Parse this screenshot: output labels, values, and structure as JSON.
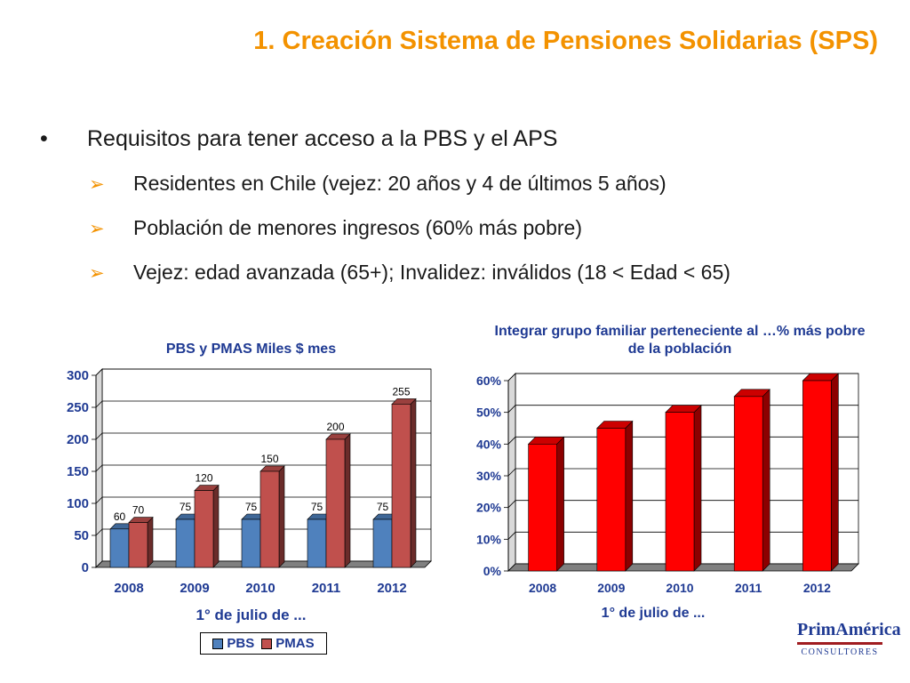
{
  "slide": {
    "title": "1. Creación Sistema de Pensiones Solidarias (SPS)",
    "bullet": "Requisitos para tener acceso a la PBS y el APS",
    "bullet_marker": "•",
    "sub_marker": "➢",
    "sub_bullets": [
      "Residentes en Chile (vejez: 20 años y 4 de últimos 5 años)",
      "Población de menores ingresos (60% más pobre)",
      "Vejez: edad avanzada (65+); Invalidez: inválidos (18 < Edad < 65)"
    ]
  },
  "logo": {
    "name": "PrimAmérica",
    "subtitle": "CONSULTORES"
  },
  "chart_data": [
    {
      "type": "bar",
      "title": "PBS y PMAS Miles $ mes",
      "xlabel": "1° de julio de ...",
      "categories": [
        "2008",
        "2009",
        "2010",
        "2011",
        "2012"
      ],
      "series": [
        {
          "name": "PBS",
          "values": [
            60,
            75,
            75,
            75,
            75
          ],
          "color": "#4f81bd"
        },
        {
          "name": "PMAS",
          "values": [
            70,
            120,
            150,
            200,
            255
          ],
          "color": "#c0504d"
        }
      ],
      "ylim": [
        0,
        300
      ],
      "yticks": [
        "0",
        "50",
        "100",
        "150",
        "200",
        "250",
        "300"
      ],
      "legend": "bottom",
      "grid": true
    },
    {
      "type": "bar",
      "title": "Integrar grupo familiar perteneciente al …% más pobre de la población",
      "xlabel": "1° de julio de ...",
      "categories": [
        "2008",
        "2009",
        "2010",
        "2011",
        "2012"
      ],
      "values": [
        40,
        45,
        50,
        55,
        60
      ],
      "color": "#ff0000",
      "ylim": [
        0,
        60
      ],
      "yticks": [
        "0%",
        "10%",
        "20%",
        "30%",
        "40%",
        "50%",
        "60%"
      ],
      "grid": true
    }
  ]
}
